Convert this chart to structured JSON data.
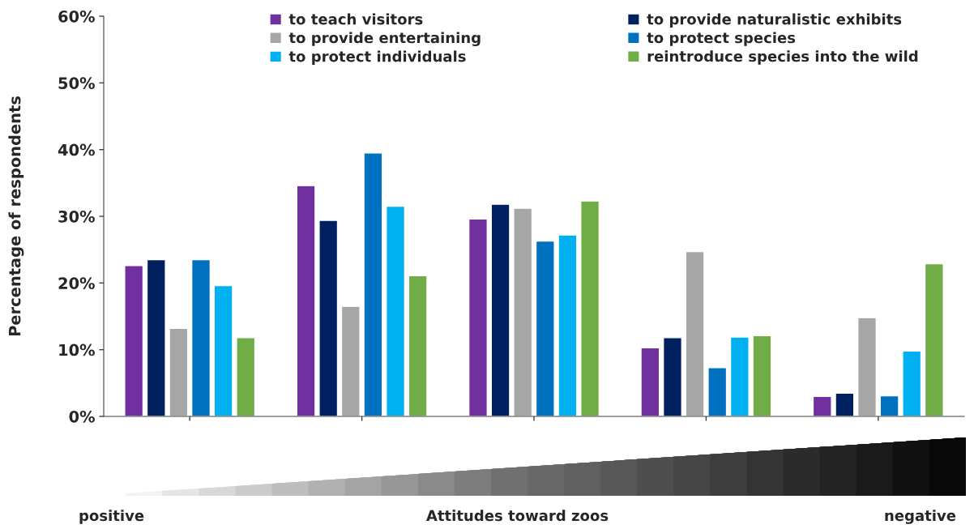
{
  "chart_data": {
    "type": "bar",
    "ylabel": "Percentage of respondents",
    "categories": [
      null,
      null,
      null,
      null,
      null
    ],
    "series": [
      {
        "name": "to teach visitors",
        "color": "#7030a0",
        "values": [
          22.6,
          34.6,
          29.6,
          10.3,
          3.0
        ]
      },
      {
        "name": "to provide naturalistic exhibits",
        "color": "#002060",
        "values": [
          23.5,
          29.4,
          31.8,
          11.8,
          3.5
        ]
      },
      {
        "name": "to provide entertaining",
        "color": "#a6a6a6",
        "values": [
          13.2,
          16.5,
          31.2,
          24.7,
          14.8
        ]
      },
      {
        "name": "to protect species",
        "color": "#0070c0",
        "values": [
          23.5,
          39.5,
          26.3,
          7.3,
          3.1
        ]
      },
      {
        "name": "to protect individuals",
        "color": "#00b0f0",
        "values": [
          19.6,
          31.5,
          27.2,
          11.9,
          9.8
        ]
      },
      {
        "name": "reintroduce species into the wild",
        "color": "#70ad47",
        "values": [
          11.8,
          21.1,
          32.3,
          12.1,
          22.9
        ]
      }
    ],
    "ylim": [
      0,
      60
    ],
    "yticks": [
      {
        "value": 0,
        "label": "0%"
      },
      {
        "value": 10,
        "label": "10%"
      },
      {
        "value": 20,
        "label": "20%"
      },
      {
        "value": 30,
        "label": "30%"
      },
      {
        "value": 40,
        "label": "40%"
      },
      {
        "value": 50,
        "label": "50%"
      },
      {
        "value": 60,
        "label": "60%"
      }
    ],
    "grid": false,
    "legend": "top",
    "annotations": [
      "positive",
      "Attitudes toward zoos",
      "negative"
    ]
  }
}
